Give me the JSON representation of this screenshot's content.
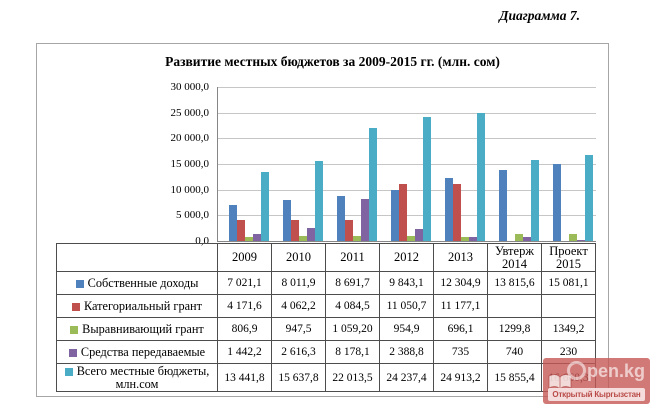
{
  "header": {
    "caption": "Диаграмма 7."
  },
  "chart_data": {
    "type": "bar",
    "title": "Развитие местных бюджетов за 2009-2015 гг. (млн. сом)",
    "categories": [
      "2009",
      "2010",
      "2011",
      "2012",
      "2013",
      "Увтерж 2014",
      "Проект 2015"
    ],
    "category_header_lines": [
      [
        "2009"
      ],
      [
        "2010"
      ],
      [
        "2011"
      ],
      [
        "2012"
      ],
      [
        "2013"
      ],
      [
        "Увтерж",
        "2014"
      ],
      [
        "Проект",
        "2015"
      ]
    ],
    "ylim": [
      0,
      30000
    ],
    "ytick_step": 5000,
    "ytick_labels_top_to_bottom": [
      "30 000,0",
      "25 000,0",
      "20 000,0",
      "15 000,0",
      "10 000,0",
      "5 000,0",
      "0,0"
    ],
    "grid": true,
    "legend_position": "data-table-left-column",
    "axis_color": "#868686",
    "gridline_color": "#c6c6c6",
    "series": [
      {
        "name": "Собственные доходы",
        "color": "#4F81BD",
        "values": [
          7021.1,
          8011.9,
          8691.7,
          9843.1,
          12304.9,
          13815.6,
          15081.1
        ],
        "display": [
          "7 021,1",
          "8 011,9",
          "8 691,7",
          "9 843,1",
          "12 304,9",
          "13 815,6",
          "15 081,1"
        ]
      },
      {
        "name": "Категориальный грант",
        "color": "#C0504D",
        "values": [
          4171.6,
          4062.2,
          4084.5,
          11050.7,
          11177.1,
          null,
          null
        ],
        "display": [
          "4 171,6",
          "4 062,2",
          "4 084,5",
          "11 050,7",
          "11 177,1",
          "",
          ""
        ]
      },
      {
        "name": "Выравнивающий грант",
        "color": "#9BBB59",
        "values": [
          806.9,
          947.5,
          1059.2,
          954.9,
          696.1,
          1299.8,
          1349.2
        ],
        "display": [
          "806,9",
          "947,5",
          "1 059,20",
          "954,9",
          "696,1",
          "1299,8",
          "1349,2"
        ]
      },
      {
        "name": "Средства передаваемые",
        "color": "#8064A2",
        "values": [
          1442.2,
          2616.3,
          8178.1,
          2388.8,
          735,
          740,
          230
        ],
        "display": [
          "1 442,2",
          "2 616,3",
          "8 178,1",
          "2 388,8",
          "735",
          "740",
          "230"
        ]
      },
      {
        "name": "Всего местные бюджеты, млн.сом",
        "color": "#4BACC6",
        "values": [
          13441.8,
          15637.8,
          22013.5,
          24237.4,
          24913.2,
          15855.4,
          16660.3
        ],
        "display": [
          "13 441,8",
          "15 637,8",
          "22 013,5",
          "24 237,4",
          "24 913,2",
          "15 855,4",
          "16 660,3"
        ]
      }
    ]
  },
  "watermark": {
    "site": "open.kg",
    "caption": "Открытый Кыргызстан",
    "overlay_color": "#C0504D",
    "caption_text_color": "#B94A48"
  }
}
